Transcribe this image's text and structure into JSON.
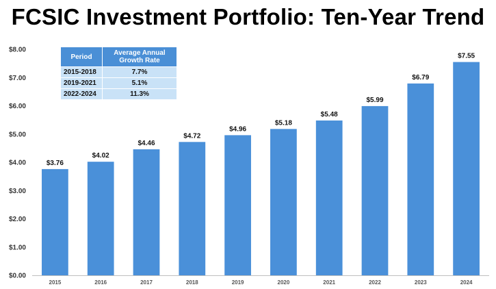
{
  "page": {
    "title": "FCSIC Investment Portfolio: Ten-Year Trend"
  },
  "growth_table": {
    "headers": [
      "Period",
      "Average Annual Growth Rate"
    ],
    "rows": [
      {
        "period": "2015-2018",
        "rate": "7.7%"
      },
      {
        "period": "2019-2021",
        "rate": "5.1%"
      },
      {
        "period": "2022-2024",
        "rate": "11.3%"
      }
    ]
  },
  "chart_data": {
    "type": "bar",
    "title": "FCSIC Investment Portfolio: Ten-Year Trend",
    "categories": [
      "2015",
      "2016",
      "2017",
      "2018",
      "2019",
      "2020",
      "2021",
      "2022",
      "2023",
      "2024"
    ],
    "values": [
      3.76,
      4.02,
      4.46,
      4.72,
      4.96,
      5.18,
      5.48,
      5.99,
      6.79,
      7.55
    ],
    "data_labels": [
      "$3.76",
      "$4.02",
      "$4.46",
      "$4.72",
      "$4.96",
      "$5.18",
      "$5.48",
      "$5.99",
      "$6.79",
      "$7.55"
    ],
    "yticks": [
      0,
      1,
      2,
      3,
      4,
      5,
      6,
      7,
      8
    ],
    "ytick_labels": [
      "$0.00",
      "$1.00",
      "$2.00",
      "$3.00",
      "$4.00",
      "$5.00",
      "$6.00",
      "$7.00",
      "$8.00"
    ],
    "ylim": [
      0,
      8
    ],
    "xlabel": "",
    "ylabel": "",
    "grid": false,
    "bar_color": "#4a90d9"
  }
}
